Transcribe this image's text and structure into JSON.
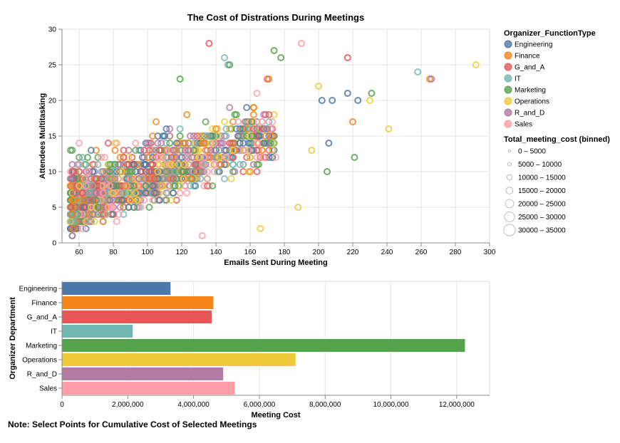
{
  "colors": {
    "Engineering": "#4c78a8",
    "Finance": "#f58518",
    "G_and_A": "#e45756",
    "IT": "#72b7b2",
    "Marketing": "#54a24b",
    "Operations": "#eeca3b",
    "R_and_D": "#b279a2",
    "Sales": "#ff9da6"
  },
  "chart_data": [
    {
      "type": "scatter",
      "title": "The Cost of Distrations During Meetings",
      "xlabel": "Emails Sent During Meeting",
      "ylabel": "Attendees Multitasking",
      "xlim": [
        50,
        300
      ],
      "ylim": [
        0,
        30
      ],
      "x_ticks": [
        60,
        80,
        100,
        120,
        140,
        160,
        180,
        200,
        220,
        240,
        260,
        280,
        300
      ],
      "y_ticks": [
        0,
        5,
        10,
        15,
        20,
        25,
        30
      ],
      "grid": true,
      "legend_title": "Organizer_FunctionType",
      "legend_entries": [
        "Engineering",
        "Finance",
        "G_and_A",
        "IT",
        "Marketing",
        "Operations",
        "R_and_D",
        "Sales"
      ],
      "size_legend_title": "Total_meeting_cost (binned)",
      "size_legend_entries": [
        "0 – 5000",
        "5000 – 10000",
        "10000 – 15000",
        "15000 – 20000",
        "20000 – 25000",
        "25000 – 30000",
        "30000 – 35000"
      ],
      "outliers": [
        {
          "x": 136,
          "y": 28,
          "group": "G_and_A"
        },
        {
          "x": 190,
          "y": 28,
          "group": "Sales"
        },
        {
          "x": 145,
          "y": 26,
          "group": "IT"
        },
        {
          "x": 147,
          "y": 25,
          "group": "IT"
        },
        {
          "x": 148,
          "y": 25,
          "group": "Marketing"
        },
        {
          "x": 174,
          "y": 27,
          "group": "Marketing"
        },
        {
          "x": 178,
          "y": 26,
          "group": "Marketing"
        },
        {
          "x": 217,
          "y": 26,
          "group": "G_and_A"
        },
        {
          "x": 258,
          "y": 24,
          "group": "IT"
        },
        {
          "x": 265,
          "y": 23,
          "group": "Finance"
        },
        {
          "x": 266,
          "y": 23,
          "group": "R_and_D"
        },
        {
          "x": 292,
          "y": 25,
          "group": "Operations"
        },
        {
          "x": 119,
          "y": 23,
          "group": "Marketing"
        },
        {
          "x": 171,
          "y": 23,
          "group": "Finance"
        },
        {
          "x": 241,
          "y": 16,
          "group": "Operations"
        },
        {
          "x": 231,
          "y": 21,
          "group": "Marketing"
        },
        {
          "x": 230,
          "y": 20,
          "group": "Operations"
        },
        {
          "x": 223,
          "y": 20,
          "group": "Engineering"
        },
        {
          "x": 217,
          "y": 21,
          "group": "Engineering"
        },
        {
          "x": 208,
          "y": 20,
          "group": "Engineering"
        },
        {
          "x": 202,
          "y": 20,
          "group": "Engineering"
        },
        {
          "x": 221,
          "y": 12,
          "group": "Marketing"
        },
        {
          "x": 205,
          "y": 10,
          "group": "Marketing"
        },
        {
          "x": 188,
          "y": 5,
          "group": "Operations"
        },
        {
          "x": 166,
          "y": 2,
          "group": "Operations"
        },
        {
          "x": 132,
          "y": 1,
          "group": "Sales"
        },
        {
          "x": 220,
          "y": 17,
          "group": "Finance"
        },
        {
          "x": 206,
          "y": 14,
          "group": "Engineering"
        },
        {
          "x": 200,
          "y": 22,
          "group": "Operations"
        },
        {
          "x": 196,
          "y": 13,
          "group": "Operations"
        }
      ]
    },
    {
      "type": "bar",
      "orientation": "horizontal",
      "xlabel": "Meeting Cost",
      "ylabel": "Organizer Department",
      "xlim": [
        0,
        13000000
      ],
      "x_ticks": [
        0,
        2000000,
        4000000,
        6000000,
        8000000,
        10000000,
        12000000
      ],
      "x_tick_labels": [
        "0",
        "2,000,000",
        "4,000,000",
        "6,000,000",
        "8,000,000",
        "10,000,000",
        "12,000,000"
      ],
      "categories": [
        "Engineering",
        "Finance",
        "G_and_A",
        "IT",
        "Marketing",
        "Operations",
        "R_and_D",
        "Sales"
      ],
      "values": [
        3300000,
        4600000,
        4550000,
        2150000,
        12250000,
        7100000,
        4900000,
        5250000
      ]
    }
  ],
  "note": "Note: Select Points for Cumulative Cost of Selected Meetings"
}
